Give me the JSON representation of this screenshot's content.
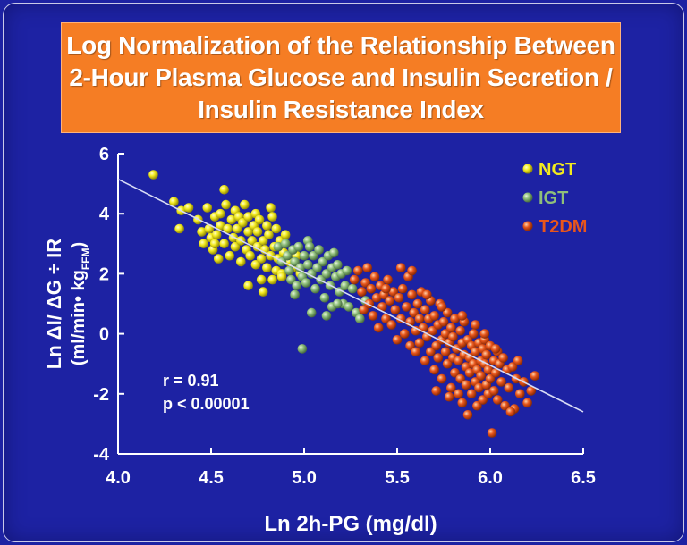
{
  "title": {
    "line1": "Log Normalization of the Relationship Between",
    "line2": "2-Hour Plasma Glucose and Insulin Secretion /",
    "line3": "Insulin Resistance Index"
  },
  "colors": {
    "background": "#1d22a3",
    "title_box": "#f57d24",
    "NGT": "#f2ea1e",
    "IGT": "#8fbf7a",
    "T2DM": "#e8561c",
    "regression_line": "#d8dcf5"
  },
  "chart_data": {
    "type": "scatter",
    "xlabel": "Ln 2h-PG (mg/dl)",
    "ylabel_line1": "Ln ΔI/ ΔG ÷ IR",
    "ylabel_line2_main": "(ml/min• kg",
    "ylabel_line2_sub": "FFM",
    "ylabel_line2_end": ")",
    "xlim": [
      4.0,
      6.5
    ],
    "ylim": [
      -4,
      6
    ],
    "x_ticks": [
      "4.0",
      "4.5",
      "5.0",
      "5.5",
      "6.0",
      "6.5"
    ],
    "y_ticks": [
      "6",
      "4",
      "2",
      "0",
      "-2",
      "-4"
    ],
    "grid": false,
    "legend_position": "top-right",
    "annotations": {
      "r": "r = 0.91",
      "p": "p < 0.00001"
    },
    "regression_line": {
      "x": [
        4.0,
        6.5
      ],
      "y": [
        5.15,
        -2.6
      ]
    },
    "series": [
      {
        "name": "NGT",
        "points": [
          [
            4.19,
            5.3
          ],
          [
            4.3,
            4.4
          ],
          [
            4.34,
            4.1
          ],
          [
            4.33,
            3.5
          ],
          [
            4.38,
            4.2
          ],
          [
            4.43,
            3.8
          ],
          [
            4.45,
            3.4
          ],
          [
            4.46,
            3.0
          ],
          [
            4.48,
            4.2
          ],
          [
            4.49,
            3.5
          ],
          [
            4.5,
            3.2
          ],
          [
            4.51,
            2.8
          ],
          [
            4.52,
            3.9
          ],
          [
            4.53,
            3.3
          ],
          [
            4.54,
            2.5
          ],
          [
            4.55,
            4.0
          ],
          [
            4.55,
            3.6
          ],
          [
            4.57,
            4.8
          ],
          [
            4.57,
            3.0
          ],
          [
            4.58,
            4.3
          ],
          [
            4.59,
            3.5
          ],
          [
            4.6,
            2.6
          ],
          [
            4.61,
            3.8
          ],
          [
            4.62,
            3.2
          ],
          [
            4.63,
            4.1
          ],
          [
            4.63,
            2.9
          ],
          [
            4.64,
            3.5
          ],
          [
            4.65,
            3.9
          ],
          [
            4.66,
            2.4
          ],
          [
            4.66,
            3.1
          ],
          [
            4.67,
            3.7
          ],
          [
            4.68,
            4.3
          ],
          [
            4.69,
            2.8
          ],
          [
            4.7,
            3.4
          ],
          [
            4.7,
            3.9
          ],
          [
            4.71,
            2.6
          ],
          [
            4.72,
            3.1
          ],
          [
            4.73,
            3.6
          ],
          [
            4.74,
            2.3
          ],
          [
            4.74,
            4.0
          ],
          [
            4.75,
            2.9
          ],
          [
            4.75,
            3.4
          ],
          [
            4.76,
            3.8
          ],
          [
            4.77,
            1.8
          ],
          [
            4.77,
            2.5
          ],
          [
            4.78,
            3.1
          ],
          [
            4.78,
            1.4
          ],
          [
            4.79,
            2.8
          ],
          [
            4.8,
            3.6
          ],
          [
            4.8,
            2.2
          ],
          [
            4.81,
            3.3
          ],
          [
            4.82,
            4.2
          ],
          [
            4.82,
            2.6
          ],
          [
            4.83,
            1.8
          ],
          [
            4.83,
            3.9
          ],
          [
            4.84,
            2.9
          ],
          [
            4.85,
            3.5
          ],
          [
            4.85,
            2.1
          ],
          [
            4.86,
            2.5
          ],
          [
            4.87,
            3.1
          ],
          [
            4.88,
            2.0
          ],
          [
            4.89,
            2.7
          ],
          [
            4.9,
            3.3
          ],
          [
            4.92,
            2.4
          ],
          [
            4.94,
            2.2
          ],
          [
            4.96,
            2.6
          ],
          [
            4.98,
            2.0
          ],
          [
            4.7,
            1.6
          ],
          [
            4.88,
            1.9
          ],
          [
            4.52,
            3.0
          ]
        ]
      },
      {
        "name": "IGT",
        "points": [
          [
            4.86,
            2.9
          ],
          [
            4.88,
            2.4
          ],
          [
            4.9,
            3.0
          ],
          [
            4.91,
            2.6
          ],
          [
            4.92,
            2.1
          ],
          [
            4.93,
            1.8
          ],
          [
            4.94,
            2.8
          ],
          [
            4.95,
            2.4
          ],
          [
            4.96,
            1.6
          ],
          [
            4.97,
            2.9
          ],
          [
            4.98,
            2.2
          ],
          [
            4.99,
            1.9
          ],
          [
            5.0,
            2.6
          ],
          [
            5.01,
            1.7
          ],
          [
            5.02,
            2.3
          ],
          [
            5.02,
            3.1
          ],
          [
            5.03,
            2.9
          ],
          [
            5.04,
            2.0
          ],
          [
            5.05,
            2.6
          ],
          [
            5.06,
            1.5
          ],
          [
            5.07,
            2.2
          ],
          [
            5.08,
            2.8
          ],
          [
            5.09,
            1.8
          ],
          [
            5.1,
            2.4
          ],
          [
            5.11,
            1.2
          ],
          [
            5.12,
            2.0
          ],
          [
            5.13,
            2.6
          ],
          [
            5.14,
            1.6
          ],
          [
            5.15,
            2.2
          ],
          [
            5.16,
            2.7
          ],
          [
            5.17,
            1.9
          ],
          [
            5.18,
            2.3
          ],
          [
            5.19,
            1.4
          ],
          [
            5.2,
            2.0
          ],
          [
            5.21,
            1.0
          ],
          [
            5.22,
            1.6
          ],
          [
            5.23,
            2.1
          ],
          [
            5.24,
            0.9
          ],
          [
            5.26,
            1.5
          ],
          [
            5.28,
            0.7
          ],
          [
            5.3,
            0.5
          ],
          [
            5.04,
            0.7
          ],
          [
            4.99,
            -0.5
          ],
          [
            5.12,
            0.6
          ],
          [
            5.15,
            0.9
          ],
          [
            4.95,
            1.3
          ],
          [
            5.33,
            1.1
          ],
          [
            5.18,
            1.0
          ]
        ]
      },
      {
        "name": "T2DM",
        "points": [
          [
            5.27,
            1.8
          ],
          [
            5.29,
            2.1
          ],
          [
            5.31,
            1.4
          ],
          [
            5.32,
            0.8
          ],
          [
            5.33,
            1.7
          ],
          [
            5.34,
            2.2
          ],
          [
            5.35,
            1.0
          ],
          [
            5.36,
            1.5
          ],
          [
            5.37,
            0.6
          ],
          [
            5.38,
            1.9
          ],
          [
            5.39,
            1.2
          ],
          [
            5.4,
            0.2
          ],
          [
            5.41,
            1.6
          ],
          [
            5.42,
            0.9
          ],
          [
            5.43,
            1.3
          ],
          [
            5.44,
            0.5
          ],
          [
            5.45,
            1.8
          ],
          [
            5.46,
            1.1
          ],
          [
            5.47,
            0.3
          ],
          [
            5.48,
            1.4
          ],
          [
            5.49,
            0.8
          ],
          [
            5.5,
            -0.2
          ],
          [
            5.51,
            1.2
          ],
          [
            5.52,
            2.2
          ],
          [
            5.52,
            0.5
          ],
          [
            5.53,
            1.5
          ],
          [
            5.54,
            0.0
          ],
          [
            5.55,
            0.9
          ],
          [
            5.56,
            1.9
          ],
          [
            5.57,
            -0.4
          ],
          [
            5.57,
            0.4
          ],
          [
            5.58,
            1.3
          ],
          [
            5.59,
            0.7
          ],
          [
            5.6,
            -0.6
          ],
          [
            5.6,
            0.1
          ],
          [
            5.61,
            1.0
          ],
          [
            5.62,
            0.5
          ],
          [
            5.62,
            -0.3
          ],
          [
            5.63,
            1.4
          ],
          [
            5.64,
            0.2
          ],
          [
            5.65,
            -0.9
          ],
          [
            5.65,
            0.8
          ],
          [
            5.66,
            -0.1
          ],
          [
            5.67,
            0.5
          ],
          [
            5.68,
            -0.6
          ],
          [
            5.68,
            1.1
          ],
          [
            5.69,
            0.1
          ],
          [
            5.7,
            -1.2
          ],
          [
            5.7,
            0.6
          ],
          [
            5.71,
            -0.4
          ],
          [
            5.72,
            0.3
          ],
          [
            5.72,
            -0.8
          ],
          [
            5.73,
            1.0
          ],
          [
            5.74,
            -0.2
          ],
          [
            5.74,
            -1.5
          ],
          [
            5.75,
            0.4
          ],
          [
            5.76,
            -0.6
          ],
          [
            5.76,
            0.0
          ],
          [
            5.77,
            -1.0
          ],
          [
            5.77,
            0.7
          ],
          [
            5.78,
            -0.3
          ],
          [
            5.79,
            -1.8
          ],
          [
            5.79,
            0.2
          ],
          [
            5.8,
            -0.8
          ],
          [
            5.8,
            -0.1
          ],
          [
            5.81,
            -1.3
          ],
          [
            5.81,
            0.5
          ],
          [
            5.82,
            -0.5
          ],
          [
            5.83,
            -2.0
          ],
          [
            5.83,
            -0.9
          ],
          [
            5.84,
            0.1
          ],
          [
            5.84,
            -1.5
          ],
          [
            5.85,
            -0.3
          ],
          [
            5.85,
            -2.3
          ],
          [
            5.86,
            -0.7
          ],
          [
            5.86,
            0.4
          ],
          [
            5.87,
            -1.1
          ],
          [
            5.87,
            -1.7
          ],
          [
            5.88,
            -0.2
          ],
          [
            5.88,
            -2.7
          ],
          [
            5.89,
            -0.8
          ],
          [
            5.89,
            -1.3
          ],
          [
            5.9,
            -0.4
          ],
          [
            5.9,
            -2.0
          ],
          [
            5.91,
            -1.0
          ],
          [
            5.91,
            0.0
          ],
          [
            5.92,
            -1.6
          ],
          [
            5.92,
            -0.6
          ],
          [
            5.93,
            -2.4
          ],
          [
            5.93,
            -1.2
          ],
          [
            5.94,
            -0.3
          ],
          [
            5.94,
            -1.8
          ],
          [
            5.95,
            -0.9
          ],
          [
            5.95,
            -1.4
          ],
          [
            5.96,
            -0.5
          ],
          [
            5.96,
            -2.2
          ],
          [
            5.97,
            -1.0
          ],
          [
            5.97,
            -0.2
          ],
          [
            5.98,
            -1.7
          ],
          [
            5.98,
            -0.7
          ],
          [
            5.99,
            -2.0
          ],
          [
            5.99,
            -1.2
          ],
          [
            6.0,
            -0.4
          ],
          [
            6.0,
            -1.5
          ],
          [
            6.01,
            -3.3
          ],
          [
            6.02,
            -0.9
          ],
          [
            6.02,
            -1.9
          ],
          [
            6.03,
            -1.3
          ],
          [
            6.04,
            -0.6
          ],
          [
            6.04,
            -2.2
          ],
          [
            6.05,
            -1.0
          ],
          [
            6.06,
            -1.6
          ],
          [
            6.07,
            -0.8
          ],
          [
            6.08,
            -2.4
          ],
          [
            6.09,
            -1.2
          ],
          [
            6.1,
            -1.8
          ],
          [
            6.12,
            -1.1
          ],
          [
            6.13,
            -2.5
          ],
          [
            6.14,
            -1.5
          ],
          [
            6.15,
            -0.9
          ],
          [
            6.16,
            -2.0
          ],
          [
            6.18,
            -1.6
          ],
          [
            6.2,
            -2.3
          ],
          [
            6.22,
            -1.9
          ],
          [
            6.24,
            -1.4
          ],
          [
            5.58,
            2.1
          ],
          [
            5.44,
            1.5
          ],
          [
            5.66,
            1.3
          ],
          [
            5.74,
            0.9
          ],
          [
            5.85,
            0.6
          ],
          [
            5.92,
            0.3
          ],
          [
            5.97,
            0.0
          ],
          [
            6.03,
            -0.5
          ],
          [
            5.78,
            -2.1
          ],
          [
            5.71,
            -1.9
          ],
          [
            6.11,
            -2.6
          ]
        ]
      }
    ]
  }
}
